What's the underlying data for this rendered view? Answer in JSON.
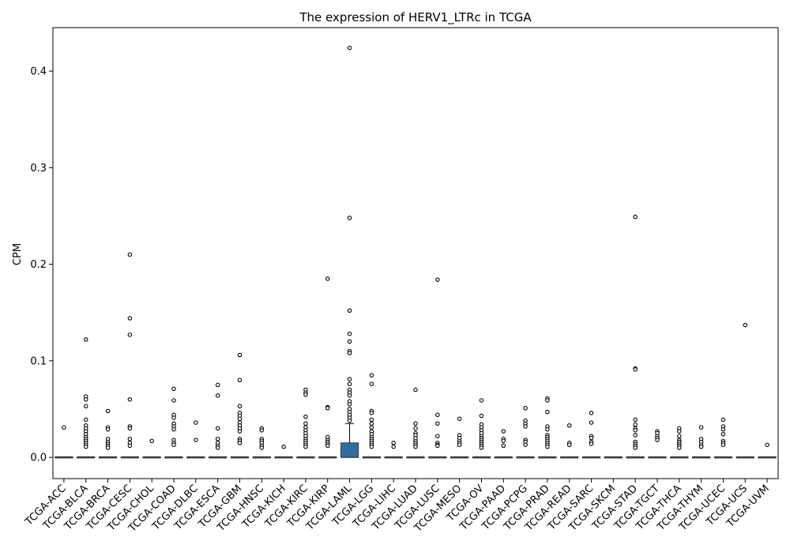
{
  "chart_data": {
    "type": "box",
    "title": "The expression of HERV1_LTRc in TCGA",
    "xlabel": "",
    "ylabel": "CPM",
    "ylim": [
      -0.022,
      0.445
    ],
    "yticks": [
      0.0,
      0.1,
      0.2,
      0.3,
      0.4
    ],
    "ytick_labels": [
      "0.0",
      "0.1",
      "0.2",
      "0.3",
      "0.4"
    ],
    "grid": false,
    "categories": [
      "TCGA-ACC",
      "TCGA-BLCA",
      "TCGA-BRCA",
      "TCGA-CESC",
      "TCGA-CHOL",
      "TCGA-COAD",
      "TCGA-DLBC",
      "TCGA-ESCA",
      "TCGA-GBM",
      "TCGA-HNSC",
      "TCGA-KICH",
      "TCGA-KIRC",
      "TCGA-KIRP",
      "TCGA-LAML",
      "TCGA-LGG",
      "TCGA-LIHC",
      "TCGA-LUAD",
      "TCGA-LUSC",
      "TCGA-MESO",
      "TCGA-OV",
      "TCGA-PAAD",
      "TCGA-PCPG",
      "TCGA-PRAD",
      "TCGA-READ",
      "TCGA-SARC",
      "TCGA-SKCM",
      "TCGA-STAD",
      "TCGA-TGCT",
      "TCGA-THCA",
      "TCGA-THYM",
      "TCGA-UCEC",
      "TCGA-UCS",
      "TCGA-UVM"
    ],
    "box_colors": {
      "default": "#4c4c4c",
      "highlight": "#2e6fa0"
    },
    "boxes": [
      {
        "q1": 0,
        "median": 0,
        "q3": 0,
        "whisker_low": 0,
        "whisker_high": 0,
        "outliers": [
          0.031
        ]
      },
      {
        "q1": 0,
        "median": 0,
        "q3": 0,
        "whisker_low": 0,
        "whisker_high": 0,
        "outliers": [
          0.122,
          0.063,
          0.06,
          0.053,
          0.039,
          0.033,
          0.03,
          0.027,
          0.024,
          0.021,
          0.019,
          0.017,
          0.015,
          0.013,
          0.011
        ]
      },
      {
        "q1": 0,
        "median": 0,
        "q3": 0,
        "whisker_low": 0,
        "whisker_high": 0,
        "outliers": [
          0.048,
          0.031,
          0.029,
          0.019,
          0.016,
          0.014,
          0.012,
          0.01
        ]
      },
      {
        "q1": 0,
        "median": 0,
        "q3": 0,
        "whisker_low": 0,
        "whisker_high": 0,
        "outliers": [
          0.21,
          0.144,
          0.127,
          0.06,
          0.032,
          0.03,
          0.019,
          0.015,
          0.012
        ]
      },
      {
        "q1": 0,
        "median": 0,
        "q3": 0,
        "whisker_low": 0,
        "whisker_high": 0,
        "outliers": [
          0.017
        ]
      },
      {
        "q1": 0,
        "median": 0,
        "q3": 0,
        "whisker_low": 0,
        "whisker_high": 0,
        "outliers": [
          0.071,
          0.059,
          0.044,
          0.041,
          0.035,
          0.032,
          0.029,
          0.018,
          0.015,
          0.013
        ]
      },
      {
        "q1": 0,
        "median": 0,
        "q3": 0,
        "whisker_low": 0,
        "whisker_high": 0,
        "outliers": [
          0.036,
          0.018
        ]
      },
      {
        "q1": 0,
        "median": 0,
        "q3": 0,
        "whisker_low": 0,
        "whisker_high": 0,
        "outliers": [
          0.075,
          0.064,
          0.03,
          0.019,
          0.015,
          0.012,
          0.01
        ]
      },
      {
        "q1": 0,
        "median": 0,
        "q3": 0,
        "whisker_low": 0,
        "whisker_high": 0,
        "outliers": [
          0.106,
          0.08,
          0.053,
          0.046,
          0.043,
          0.04,
          0.036,
          0.033,
          0.03,
          0.027,
          0.019,
          0.017,
          0.015
        ]
      },
      {
        "q1": 0,
        "median": 0,
        "q3": 0,
        "whisker_low": 0,
        "whisker_high": 0,
        "outliers": [
          0.03,
          0.028,
          0.019,
          0.017,
          0.015,
          0.012,
          0.01
        ]
      },
      {
        "q1": 0,
        "median": 0,
        "q3": 0,
        "whisker_low": 0,
        "whisker_high": 0,
        "outliers": [
          0.011
        ]
      },
      {
        "q1": 0,
        "median": 0,
        "q3": 0,
        "whisker_low": 0,
        "whisker_high": 0,
        "outliers": [
          0.07,
          0.067,
          0.065,
          0.042,
          0.035,
          0.031,
          0.028,
          0.025,
          0.022,
          0.019,
          0.017,
          0.015,
          0.013,
          0.011
        ]
      },
      {
        "q1": 0,
        "median": 0,
        "q3": 0,
        "whisker_low": 0,
        "whisker_high": 0,
        "outliers": [
          0.185,
          0.052,
          0.051,
          0.021,
          0.018,
          0.016,
          0.014,
          0.012
        ]
      },
      {
        "q1": 0,
        "median": 0,
        "q3": 0.015,
        "whisker_low": 0,
        "whisker_high": 0.035,
        "outliers": [
          0.424,
          0.248,
          0.152,
          0.128,
          0.12,
          0.11,
          0.108,
          0.081,
          0.076,
          0.07,
          0.067,
          0.064,
          0.058,
          0.055,
          0.05,
          0.047,
          0.044,
          0.041,
          0.038
        ]
      },
      {
        "q1": 0,
        "median": 0,
        "q3": 0,
        "whisker_low": 0,
        "whisker_high": 0,
        "outliers": [
          0.085,
          0.076,
          0.048,
          0.046,
          0.039,
          0.035,
          0.031,
          0.027,
          0.024,
          0.021,
          0.019,
          0.017,
          0.015,
          0.013,
          0.011
        ]
      },
      {
        "q1": 0,
        "median": 0,
        "q3": 0,
        "whisker_low": 0,
        "whisker_high": 0,
        "outliers": [
          0.015,
          0.011
        ]
      },
      {
        "q1": 0,
        "median": 0,
        "q3": 0,
        "whisker_low": 0,
        "whisker_high": 0,
        "outliers": [
          0.07,
          0.035,
          0.03,
          0.025,
          0.023,
          0.02,
          0.017,
          0.015,
          0.013,
          0.011
        ]
      },
      {
        "q1": 0,
        "median": 0,
        "q3": 0,
        "whisker_low": 0,
        "whisker_high": 0,
        "outliers": [
          0.184,
          0.044,
          0.035,
          0.022,
          0.015,
          0.013,
          0.012
        ]
      },
      {
        "q1": 0,
        "median": 0,
        "q3": 0,
        "whisker_low": 0,
        "whisker_high": 0,
        "outliers": [
          0.04,
          0.023,
          0.02,
          0.017,
          0.015,
          0.013
        ]
      },
      {
        "q1": 0,
        "median": 0,
        "q3": 0,
        "whisker_low": 0,
        "whisker_high": 0,
        "outliers": [
          0.059,
          0.043,
          0.034,
          0.031,
          0.028,
          0.025,
          0.022,
          0.02,
          0.018,
          0.016,
          0.014,
          0.012,
          0.01
        ]
      },
      {
        "q1": 0,
        "median": 0,
        "q3": 0,
        "whisker_low": 0,
        "whisker_high": 0,
        "outliers": [
          0.027,
          0.019,
          0.017,
          0.012
        ]
      },
      {
        "q1": 0,
        "median": 0,
        "q3": 0,
        "whisker_low": 0,
        "whisker_high": 0,
        "outliers": [
          0.051,
          0.038,
          0.035,
          0.032,
          0.018,
          0.016,
          0.013
        ]
      },
      {
        "q1": 0,
        "median": 0,
        "q3": 0,
        "whisker_low": 0,
        "whisker_high": 0,
        "outliers": [
          0.061,
          0.059,
          0.047,
          0.032,
          0.029,
          0.023,
          0.021,
          0.019,
          0.017,
          0.015,
          0.013,
          0.011
        ]
      },
      {
        "q1": 0,
        "median": 0,
        "q3": 0,
        "whisker_low": 0,
        "whisker_high": 0,
        "outliers": [
          0.033,
          0.015,
          0.013
        ]
      },
      {
        "q1": 0,
        "median": 0,
        "q3": 0,
        "whisker_low": 0,
        "whisker_high": 0,
        "outliers": [
          0.046,
          0.036,
          0.022,
          0.02,
          0.016,
          0.014
        ]
      },
      {
        "q1": 0,
        "median": 0,
        "q3": 0,
        "whisker_low": 0,
        "whisker_high": 0,
        "outliers": []
      },
      {
        "q1": 0,
        "median": 0,
        "q3": 0,
        "whisker_low": 0,
        "whisker_high": 0,
        "outliers": [
          0.249,
          0.092,
          0.091,
          0.039,
          0.034,
          0.03,
          0.028,
          0.023,
          0.016,
          0.014,
          0.012,
          0.01
        ]
      },
      {
        "q1": 0,
        "median": 0,
        "q3": 0,
        "whisker_low": 0,
        "whisker_high": 0,
        "outliers": [
          0.027,
          0.025,
          0.022,
          0.02,
          0.018
        ]
      },
      {
        "q1": 0,
        "median": 0,
        "q3": 0,
        "whisker_low": 0,
        "whisker_high": 0,
        "outliers": [
          0.03,
          0.027,
          0.022,
          0.018,
          0.016,
          0.014,
          0.012,
          0.01
        ]
      },
      {
        "q1": 0,
        "median": 0,
        "q3": 0,
        "whisker_low": 0,
        "whisker_high": 0,
        "outliers": [
          0.031,
          0.019,
          0.016,
          0.013,
          0.011
        ]
      },
      {
        "q1": 0,
        "median": 0,
        "q3": 0,
        "whisker_low": 0,
        "whisker_high": 0,
        "outliers": [
          0.039,
          0.032,
          0.029,
          0.024,
          0.017,
          0.015,
          0.013
        ]
      },
      {
        "q1": 0,
        "median": 0,
        "q3": 0,
        "whisker_low": 0,
        "whisker_high": 0,
        "outliers": [
          0.137
        ]
      },
      {
        "q1": 0,
        "median": 0,
        "q3": 0,
        "whisker_low": 0,
        "whisker_high": 0,
        "outliers": [
          0.013
        ]
      }
    ]
  }
}
